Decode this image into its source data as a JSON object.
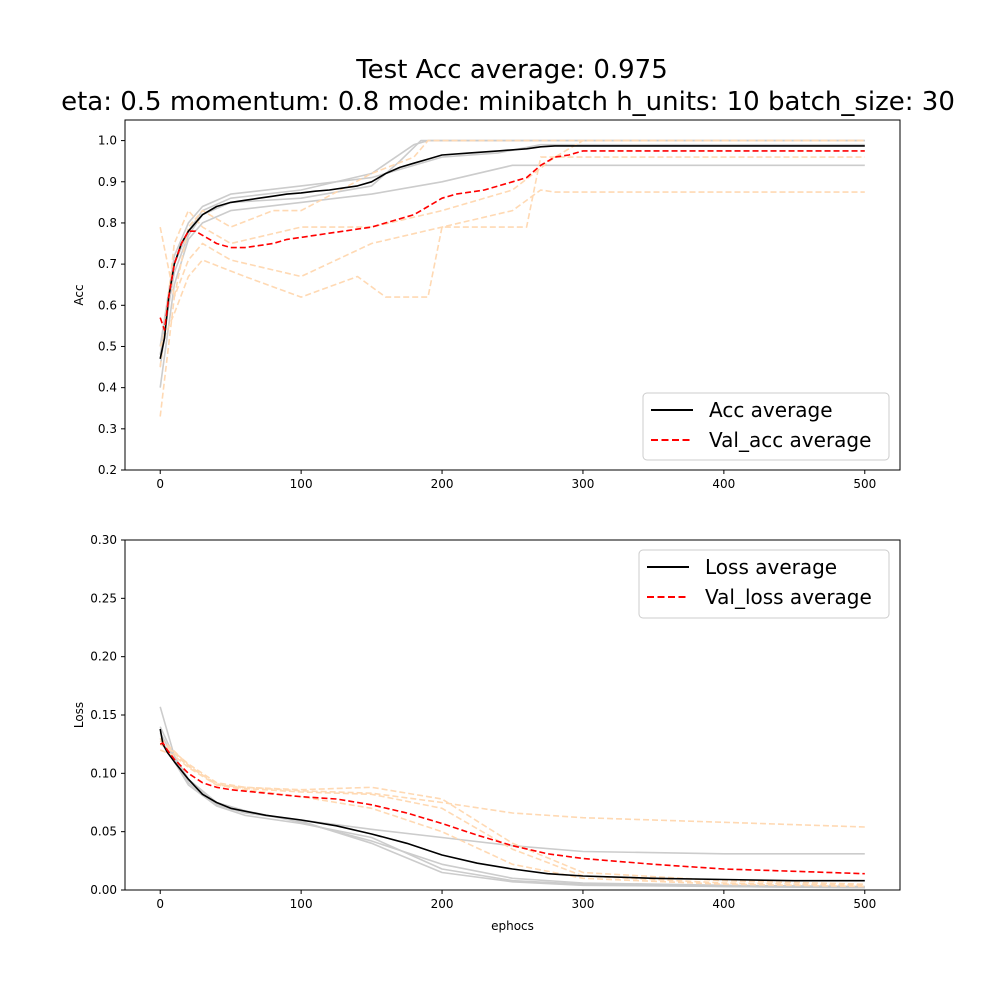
{
  "figure": {
    "title_line1": "Test Acc average: 0.975",
    "title_line2": "eta: 0.5 momentum: 0.8 mode: minibatch h_units: 10 batch_size: 30"
  },
  "colors": {
    "trial_train": "#cccccc",
    "trial_val": "#ffd9b3",
    "avg_train": "#000000",
    "avg_val": "#ff0000"
  },
  "chart_data": [
    {
      "type": "line",
      "title": "",
      "xlabel": "",
      "ylabel": "Acc",
      "xlim": [
        -25,
        525
      ],
      "ylim": [
        0.2,
        1.05
      ],
      "xticks": [
        0,
        100,
        200,
        300,
        400,
        500
      ],
      "yticks": [
        0.2,
        0.3,
        0.4,
        0.5,
        0.6,
        0.7,
        0.8,
        0.9,
        1.0
      ],
      "xtick_labels": [
        "0",
        "100",
        "200",
        "300",
        "400",
        "500"
      ],
      "ytick_labels": [
        "0.2",
        "0.3",
        "0.4",
        "0.5",
        "0.6",
        "0.7",
        "0.8",
        "0.9",
        "1.0"
      ],
      "legend_position": "lower-right",
      "legend": [
        "Acc average",
        "Val_acc average"
      ],
      "series": [
        {
          "name": "Acc average",
          "style": "solid",
          "color": "#000000",
          "x": [
            0,
            3,
            6,
            10,
            15,
            20,
            25,
            30,
            40,
            50,
            60,
            70,
            80,
            90,
            100,
            110,
            120,
            130,
            140,
            150,
            160,
            170,
            180,
            190,
            200,
            220,
            240,
            260,
            270,
            280,
            300,
            350,
            400,
            450,
            500
          ],
          "y": [
            0.47,
            0.52,
            0.62,
            0.7,
            0.75,
            0.78,
            0.8,
            0.82,
            0.84,
            0.85,
            0.855,
            0.86,
            0.865,
            0.87,
            0.873,
            0.877,
            0.88,
            0.885,
            0.89,
            0.9,
            0.92,
            0.935,
            0.945,
            0.955,
            0.965,
            0.97,
            0.975,
            0.98,
            0.985,
            0.987,
            0.987,
            0.987,
            0.987,
            0.987,
            0.987
          ]
        },
        {
          "name": "Val_acc average",
          "style": "dashed",
          "color": "#ff0000",
          "x": [
            0,
            3,
            6,
            10,
            15,
            20,
            25,
            30,
            40,
            50,
            60,
            70,
            80,
            90,
            100,
            110,
            120,
            130,
            140,
            150,
            160,
            170,
            180,
            190,
            200,
            210,
            220,
            230,
            240,
            250,
            260,
            270,
            280,
            290,
            300,
            350,
            400,
            450,
            500
          ],
          "y": [
            0.57,
            0.54,
            0.62,
            0.7,
            0.75,
            0.78,
            0.78,
            0.77,
            0.75,
            0.74,
            0.74,
            0.745,
            0.75,
            0.76,
            0.765,
            0.77,
            0.775,
            0.78,
            0.785,
            0.79,
            0.8,
            0.81,
            0.82,
            0.84,
            0.86,
            0.87,
            0.875,
            0.88,
            0.89,
            0.9,
            0.91,
            0.94,
            0.96,
            0.965,
            0.975,
            0.975,
            0.975,
            0.975,
            0.975
          ]
        },
        {
          "name": "",
          "style": "solid",
          "color": "#cccccc",
          "x": [
            0,
            10,
            20,
            30,
            50,
            100,
            150,
            180,
            190,
            200,
            500
          ],
          "y": [
            0.45,
            0.7,
            0.78,
            0.83,
            0.86,
            0.88,
            0.92,
            0.99,
            1.0,
            1.0,
            1.0
          ]
        },
        {
          "name": "",
          "style": "solid",
          "color": "#cccccc",
          "x": [
            0,
            10,
            20,
            30,
            50,
            100,
            150,
            200,
            250,
            300,
            500
          ],
          "y": [
            0.4,
            0.65,
            0.76,
            0.8,
            0.83,
            0.85,
            0.87,
            0.9,
            0.94,
            0.94,
            0.94
          ]
        },
        {
          "name": "",
          "style": "solid",
          "color": "#cccccc",
          "x": [
            0,
            10,
            20,
            30,
            50,
            100,
            150,
            200,
            240,
            270,
            500
          ],
          "y": [
            0.5,
            0.72,
            0.8,
            0.84,
            0.87,
            0.89,
            0.91,
            0.96,
            0.97,
            0.99,
            0.99
          ]
        },
        {
          "name": "",
          "style": "solid",
          "color": "#cccccc",
          "x": [
            0,
            10,
            20,
            30,
            50,
            100,
            150,
            170,
            185,
            500
          ],
          "y": [
            0.48,
            0.68,
            0.77,
            0.82,
            0.85,
            0.86,
            0.89,
            0.95,
            1.0,
            1.0
          ]
        },
        {
          "name": "",
          "style": "dashed",
          "color": "#ffd9b3",
          "x": [
            0,
            10,
            20,
            30,
            50,
            80,
            100,
            150,
            180,
            190,
            500
          ],
          "y": [
            0.79,
            0.62,
            0.79,
            0.83,
            0.79,
            0.83,
            0.83,
            0.92,
            0.96,
            1.0,
            1.0
          ]
        },
        {
          "name": "",
          "style": "dashed",
          "color": "#ffd9b3",
          "x": [
            0,
            10,
            20,
            30,
            50,
            100,
            150,
            200,
            250,
            270,
            280,
            500
          ],
          "y": [
            0.33,
            0.62,
            0.71,
            0.75,
            0.71,
            0.67,
            0.75,
            0.79,
            0.83,
            0.88,
            0.875,
            0.875
          ]
        },
        {
          "name": "",
          "style": "dashed",
          "color": "#ffd9b3",
          "x": [
            0,
            10,
            20,
            30,
            60,
            100,
            140,
            160,
            190,
            200,
            230,
            260,
            270,
            500
          ],
          "y": [
            0.5,
            0.58,
            0.67,
            0.71,
            0.67,
            0.62,
            0.67,
            0.62,
            0.62,
            0.79,
            0.79,
            0.79,
            0.96,
            0.96
          ]
        },
        {
          "name": "",
          "style": "dashed",
          "color": "#ffd9b3",
          "x": [
            0,
            10,
            20,
            30,
            50,
            100,
            150,
            200,
            250,
            280,
            300,
            500
          ],
          "y": [
            0.45,
            0.75,
            0.83,
            0.79,
            0.75,
            0.79,
            0.79,
            0.83,
            0.88,
            0.96,
            1.0,
            1.0
          ]
        }
      ]
    },
    {
      "type": "line",
      "title": "",
      "xlabel": "ephocs",
      "ylabel": "Loss",
      "xlim": [
        -25,
        525
      ],
      "ylim": [
        0.0,
        0.3
      ],
      "xticks": [
        0,
        100,
        200,
        300,
        400,
        500
      ],
      "yticks": [
        0.0,
        0.05,
        0.1,
        0.15,
        0.2,
        0.25,
        0.3
      ],
      "xtick_labels": [
        "0",
        "100",
        "200",
        "300",
        "400",
        "500"
      ],
      "ytick_labels": [
        "0.00",
        "0.05",
        "0.10",
        "0.15",
        "0.20",
        "0.25",
        "0.30"
      ],
      "legend_position": "upper-right",
      "legend": [
        "Loss average",
        "Val_loss average"
      ],
      "series": [
        {
          "name": "Loss average",
          "style": "solid",
          "color": "#000000",
          "x": [
            0,
            2,
            5,
            10,
            20,
            30,
            40,
            50,
            75,
            100,
            125,
            150,
            175,
            200,
            225,
            250,
            275,
            300,
            350,
            400,
            450,
            500
          ],
          "y": [
            0.138,
            0.125,
            0.118,
            0.11,
            0.095,
            0.082,
            0.075,
            0.07,
            0.064,
            0.06,
            0.055,
            0.048,
            0.04,
            0.03,
            0.023,
            0.018,
            0.014,
            0.012,
            0.01,
            0.009,
            0.008,
            0.008
          ]
        },
        {
          "name": "Val_loss average",
          "style": "dashed",
          "color": "#ff0000",
          "x": [
            0,
            2,
            5,
            10,
            20,
            30,
            40,
            50,
            75,
            100,
            125,
            150,
            175,
            200,
            225,
            250,
            275,
            300,
            350,
            400,
            450,
            500
          ],
          "y": [
            0.125,
            0.126,
            0.12,
            0.112,
            0.1,
            0.092,
            0.088,
            0.086,
            0.083,
            0.08,
            0.078,
            0.073,
            0.066,
            0.057,
            0.047,
            0.038,
            0.031,
            0.027,
            0.022,
            0.018,
            0.016,
            0.014
          ]
        },
        {
          "name": "",
          "style": "solid",
          "color": "#cccccc",
          "x": [
            0,
            10,
            20,
            40,
            60,
            100,
            150,
            200,
            250,
            300,
            400,
            500
          ],
          "y": [
            0.157,
            0.115,
            0.095,
            0.075,
            0.068,
            0.058,
            0.042,
            0.022,
            0.01,
            0.006,
            0.004,
            0.003
          ]
        },
        {
          "name": "",
          "style": "solid",
          "color": "#cccccc",
          "x": [
            0,
            10,
            20,
            40,
            60,
            100,
            150,
            200,
            250,
            300,
            400,
            500
          ],
          "y": [
            0.135,
            0.112,
            0.092,
            0.073,
            0.066,
            0.06,
            0.052,
            0.045,
            0.038,
            0.033,
            0.031,
            0.031
          ]
        },
        {
          "name": "",
          "style": "solid",
          "color": "#cccccc",
          "x": [
            0,
            10,
            20,
            40,
            60,
            100,
            150,
            200,
            250,
            300,
            400,
            500
          ],
          "y": [
            0.13,
            0.11,
            0.09,
            0.072,
            0.064,
            0.057,
            0.045,
            0.018,
            0.008,
            0.005,
            0.003,
            0.002
          ]
        },
        {
          "name": "",
          "style": "solid",
          "color": "#cccccc",
          "x": [
            0,
            10,
            20,
            40,
            60,
            100,
            150,
            200,
            250,
            300,
            400,
            500
          ],
          "y": [
            0.14,
            0.114,
            0.094,
            0.074,
            0.067,
            0.059,
            0.04,
            0.015,
            0.007,
            0.004,
            0.003,
            0.002
          ]
        },
        {
          "name": "",
          "style": "dashed",
          "color": "#ffd9b3",
          "x": [
            0,
            10,
            20,
            40,
            60,
            100,
            150,
            200,
            250,
            300,
            400,
            500
          ],
          "y": [
            0.12,
            0.115,
            0.105,
            0.09,
            0.088,
            0.085,
            0.083,
            0.075,
            0.066,
            0.062,
            0.058,
            0.054
          ]
        },
        {
          "name": "",
          "style": "dashed",
          "color": "#ffd9b3",
          "x": [
            0,
            10,
            20,
            40,
            60,
            100,
            150,
            200,
            250,
            300,
            400,
            500
          ],
          "y": [
            0.125,
            0.118,
            0.108,
            0.092,
            0.088,
            0.086,
            0.088,
            0.078,
            0.04,
            0.015,
            0.008,
            0.005
          ]
        },
        {
          "name": "",
          "style": "dashed",
          "color": "#ffd9b3",
          "x": [
            0,
            10,
            20,
            40,
            60,
            100,
            150,
            200,
            250,
            300,
            400,
            500
          ],
          "y": [
            0.128,
            0.117,
            0.106,
            0.091,
            0.087,
            0.084,
            0.082,
            0.07,
            0.035,
            0.012,
            0.006,
            0.004
          ]
        },
        {
          "name": "",
          "style": "dashed",
          "color": "#ffd9b3",
          "x": [
            0,
            10,
            20,
            40,
            60,
            100,
            150,
            200,
            250,
            300,
            400,
            500
          ],
          "y": [
            0.13,
            0.119,
            0.107,
            0.09,
            0.086,
            0.08,
            0.07,
            0.05,
            0.022,
            0.01,
            0.005,
            0.003
          ]
        }
      ]
    }
  ]
}
